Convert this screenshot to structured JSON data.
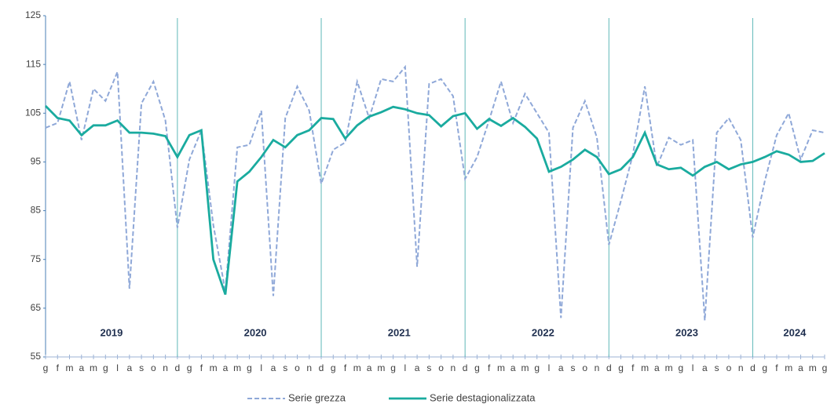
{
  "chart_data": {
    "type": "line",
    "categories": [
      "g",
      "f",
      "m",
      "a",
      "m",
      "g",
      "l",
      "a",
      "s",
      "o",
      "n",
      "d",
      "g",
      "f",
      "m",
      "a",
      "m",
      "g",
      "l",
      "a",
      "s",
      "o",
      "n",
      "d",
      "g",
      "f",
      "m",
      "a",
      "m",
      "g",
      "l",
      "a",
      "s",
      "o",
      "n",
      "d",
      "g",
      "f",
      "m",
      "a",
      "m",
      "g",
      "l",
      "a",
      "s",
      "o",
      "n",
      "d",
      "g",
      "f",
      "m",
      "a",
      "m",
      "g",
      "l",
      "a",
      "s",
      "o",
      "n",
      "d",
      "g",
      "f",
      "m",
      "a",
      "m",
      "g"
    ],
    "series": [
      {
        "name": "Serie grezza",
        "color": "#8fa8d8",
        "dashed": true,
        "values": [
          102,
          103,
          111.5,
          99.5,
          110,
          107.5,
          113.5,
          69,
          107,
          111.5,
          103.5,
          81.5,
          95.5,
          101.5,
          82,
          68.5,
          98,
          98.5,
          105.5,
          67.5,
          104,
          110.5,
          105.5,
          90.5,
          97.5,
          99,
          111.5,
          104,
          112,
          111.5,
          114.5,
          73.5,
          111,
          112,
          108.5,
          91.5,
          96,
          103.5,
          111.5,
          103,
          109,
          105,
          101,
          63,
          102,
          107.5,
          100,
          78,
          87,
          96.5,
          110.5,
          94,
          100,
          98.5,
          99.5,
          62.5,
          101,
          104,
          99.5,
          79.5,
          91,
          100.5,
          105,
          95.5,
          101.5,
          101
        ]
      },
      {
        "name": "Serie destagionalizzata",
        "color": "#1aab9f",
        "dashed": false,
        "values": [
          106.5,
          104,
          103.5,
          100.5,
          102.5,
          102.5,
          103.5,
          101,
          101,
          100.8,
          100.3,
          96,
          100.5,
          101.5,
          75,
          67.8,
          91,
          93,
          96,
          99.5,
          98,
          100.5,
          101.5,
          104,
          103.8,
          99.8,
          102.5,
          104.3,
          105.2,
          106.3,
          105.8,
          105,
          104.6,
          102.3,
          104.4,
          105,
          101.8,
          103.8,
          102.4,
          104,
          102.2,
          99.8,
          93,
          94,
          95.5,
          97.5,
          96,
          92.5,
          93.5,
          96,
          101,
          94.5,
          93.5,
          93.8,
          92.2,
          94,
          95,
          93.5,
          94.5,
          95,
          96,
          97.2,
          96.5,
          95,
          95.2,
          96.8
        ]
      }
    ],
    "annotations": [
      "2019",
      "2020",
      "2021",
      "2022",
      "2023",
      "2024"
    ],
    "ylim": [
      55,
      125
    ],
    "yticks": [
      55,
      65,
      75,
      85,
      95,
      105,
      115,
      125
    ],
    "grid": false,
    "legend": "bottom"
  }
}
